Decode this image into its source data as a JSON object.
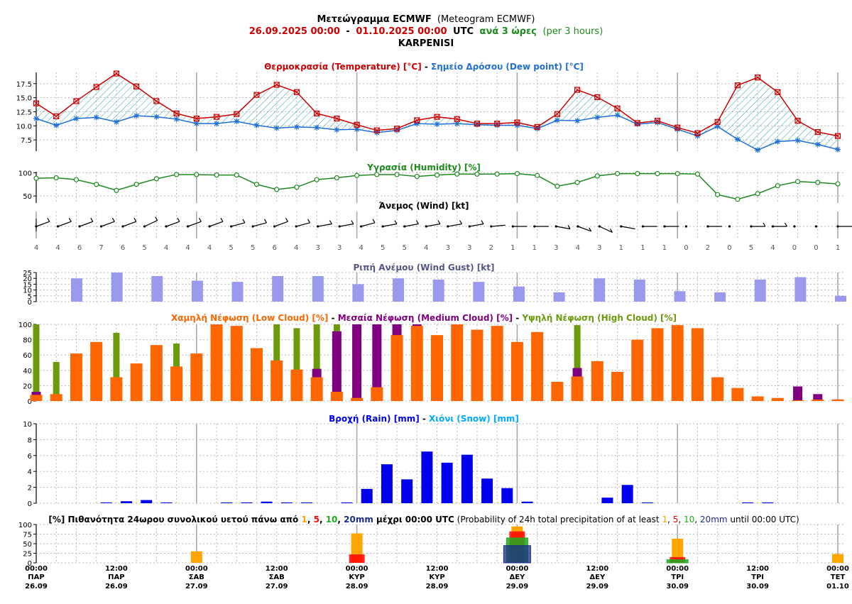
{
  "header": {
    "title_gr": "Μετεώγραμμα ECMWF",
    "title_en": "(Meteogram ECMWF)",
    "range_start": "26.09.2025 00:00",
    "dash": "-",
    "range_end": "01.10.2025 00:00",
    "utc": "UTC",
    "step_gr": "ανά 3 ώρες",
    "step_en": "(per 3 hours)",
    "location": "KARPENISI"
  },
  "colors": {
    "temp": "#cc0000",
    "dew": "#1f6fd6",
    "hum": "#1e8a1e",
    "gust": "#9999ee",
    "low": "#ff6600",
    "med": "#800080",
    "high": "#6b9b0b",
    "rain": "#0000ee",
    "snow": "#00aaff",
    "p1": "#ffa500",
    "p5": "#ff0000",
    "p10": "#22aa22",
    "p20": "#1a2e8a",
    "grid": "#bbbbbb",
    "day": "#aaaaaa"
  },
  "chart_data": [
    {
      "type": "line",
      "title_parts": [
        {
          "text": "Θερμοκρασία (Temperature) [°C]",
          "color": "temp"
        },
        {
          "text": " - ",
          "color": "black"
        },
        {
          "text": "Σημείο Δρόσου (Dew point) [°C]",
          "color": "dew"
        }
      ],
      "ylim": [
        5.5,
        19.5
      ],
      "yticks": [
        7.5,
        10.0,
        12.5,
        15.0,
        17.5
      ],
      "series": [
        {
          "name": "Θερμοκρασία (Temperature) [°C]",
          "values": [
            14.0,
            11.7,
            14.4,
            16.9,
            19.3,
            17.0,
            14.4,
            12.2,
            11.3,
            11.6,
            12.1,
            15.5,
            17.3,
            16.0,
            12.2,
            11.3,
            10.2,
            9.2,
            9.5,
            11.0,
            11.6,
            11.2,
            10.4,
            10.4,
            10.6,
            9.8,
            12.1,
            16.4,
            15.1,
            13.1,
            10.5,
            10.9,
            9.7,
            8.7,
            10.7,
            17.2,
            18.6,
            16.0,
            10.9,
            8.9,
            8.2
          ]
        },
        {
          "name": "Σημείο Δρόσου (Dew point) [°C]",
          "values": [
            11.3,
            10.1,
            11.3,
            11.5,
            10.7,
            11.8,
            11.6,
            11.2,
            10.4,
            10.4,
            10.8,
            10.1,
            9.6,
            9.8,
            9.7,
            9.3,
            9.4,
            8.8,
            9.2,
            10.4,
            10.3,
            10.4,
            10.2,
            10.1,
            10.1,
            9.5,
            11.0,
            10.9,
            11.5,
            11.9,
            10.3,
            10.6,
            9.4,
            8.2,
            9.9,
            7.6,
            5.7,
            7.2,
            7.4,
            6.7,
            5.8
          ]
        }
      ]
    },
    {
      "type": "line",
      "title": "Υγρασία (Humidity) [%]",
      "ylim": [
        35,
        102
      ],
      "yticks": [
        50,
        100
      ],
      "values": [
        88,
        89,
        85,
        75,
        62,
        75,
        87,
        96,
        96,
        95,
        95,
        75,
        64,
        69,
        85,
        89,
        94,
        96,
        96,
        92,
        95,
        97,
        97,
        97,
        98,
        94,
        71,
        79,
        93,
        98,
        98,
        98,
        98,
        97,
        53,
        43,
        55,
        72,
        81,
        79,
        76
      ]
    },
    {
      "type": "wind",
      "title": "Άνεμος (Wind) [kt]",
      "values": [
        4,
        4,
        6,
        7,
        6,
        5,
        4,
        4,
        4,
        5,
        5,
        6,
        4,
        3,
        3,
        4,
        5,
        5,
        4,
        3,
        3,
        2,
        1,
        1,
        3,
        4,
        3,
        1,
        1,
        1,
        0,
        2,
        0,
        5,
        4,
        0,
        0,
        1
      ],
      "directions": [
        20,
        20,
        20,
        20,
        20,
        25,
        20,
        20,
        20,
        15,
        15,
        20,
        15,
        10,
        10,
        15,
        10,
        10,
        10,
        10,
        10,
        5,
        0,
        0,
        -10,
        -20,
        -25,
        -10,
        0,
        0,
        0,
        0,
        0,
        0,
        0,
        0,
        0,
        0
      ]
    },
    {
      "type": "bar",
      "title": "Ριπή Ανέμου (Wind Gust) [kt]",
      "ylim": [
        0,
        25
      ],
      "yticks": [
        0,
        5,
        10,
        15,
        20,
        25
      ],
      "values": [
        20,
        25,
        22,
        18,
        17,
        22,
        22,
        15,
        20,
        19,
        17,
        13,
        8,
        20,
        19,
        9,
        8,
        19,
        21,
        5
      ]
    },
    {
      "type": "bar",
      "title_parts": [
        {
          "text": "Χαμηλή Νέφωση (Low Cloud) [%]",
          "color": "low"
        },
        {
          "text": " - ",
          "color": "black"
        },
        {
          "text": "Μεσαία Νέφωση (Medium Cloud) [%]",
          "color": "med"
        },
        {
          "text": " - ",
          "color": "black"
        },
        {
          "text": "Υψηλή Νέφωση (High Cloud) [%]",
          "color": "high"
        }
      ],
      "ylim": [
        0,
        100
      ],
      "yticks": [
        0,
        20,
        40,
        60,
        80,
        100
      ],
      "series": [
        {
          "name": "Υψηλή Νέφωση (High Cloud) [%]",
          "values": [
            100,
            51,
            0,
            0,
            89,
            0,
            0,
            75,
            0,
            0,
            0,
            0,
            100,
            95,
            100,
            100,
            0,
            0,
            0,
            0,
            0,
            0,
            0,
            0,
            0,
            0,
            0,
            99,
            43,
            0,
            0,
            0,
            0,
            0,
            0,
            0,
            0,
            0,
            0,
            0,
            0,
            0
          ]
        },
        {
          "name": "Μεσαία Νέφωση (Medium Cloud) [%]",
          "values": [
            12,
            0,
            0,
            0,
            0,
            0,
            0,
            0,
            0,
            0,
            0,
            0,
            0,
            0,
            42,
            91,
            100,
            100,
            100,
            100,
            0,
            0,
            0,
            0,
            0,
            0,
            0,
            43,
            0,
            0,
            0,
            0,
            0,
            0,
            0,
            0,
            0,
            0,
            19,
            9,
            2,
            0
          ]
        },
        {
          "name": "Χαμηλή Νέφωση (Low Cloud) [%]",
          "values": [
            8,
            9,
            62,
            77,
            31,
            49,
            73,
            45,
            62,
            100,
            98,
            69,
            53,
            41,
            31,
            12,
            4,
            18,
            86,
            98,
            86,
            100,
            93,
            98,
            77,
            90,
            25,
            32,
            52,
            38,
            80,
            95,
            99,
            95,
            31,
            17,
            6,
            4,
            1,
            2,
            2,
            0
          ]
        }
      ]
    },
    {
      "type": "bar",
      "title_parts": [
        {
          "text": "Βροχή (Rain) [mm]",
          "color": "rain"
        },
        {
          "text": " - ",
          "color": "black"
        },
        {
          "text": "Χιόνι (Snow) [mm]",
          "color": "snow"
        }
      ],
      "ylim": [
        0,
        10
      ],
      "yticks": [
        0,
        2,
        4,
        6,
        8,
        10
      ],
      "values": [
        0,
        0,
        0,
        0.1,
        0.25,
        0.4,
        0.1,
        0,
        0,
        0.1,
        0.1,
        0.2,
        0.1,
        0.1,
        0,
        0.1,
        1.8,
        4.9,
        3.0,
        6.5,
        5.1,
        6.1,
        3.1,
        1.9,
        0.2,
        0,
        0,
        0,
        0.7,
        2.3,
        0.1,
        0,
        0,
        0,
        0,
        0.1,
        0.1,
        0,
        0,
        0,
        0
      ]
    },
    {
      "type": "bar",
      "title_parts": [
        {
          "text": "[%] Πιθανότητα 24ωρου συνολικού υετού πάνω από ",
          "color": "black",
          "bold": true
        },
        {
          "text": "1",
          "color": "p1",
          "bold": true
        },
        {
          "text": ", ",
          "color": "black",
          "bold": true
        },
        {
          "text": "5",
          "color": "p5",
          "bold": true
        },
        {
          "text": ", ",
          "color": "black",
          "bold": true
        },
        {
          "text": "10",
          "color": "p10",
          "bold": true
        },
        {
          "text": ", ",
          "color": "black",
          "bold": true
        },
        {
          "text": "20mm",
          "color": "p20",
          "bold": true
        },
        {
          "text": " μέχρι 00:00 UTC",
          "color": "black",
          "bold": true
        },
        {
          "text": " (Probability of 24h total precipitation of at least ",
          "color": "black",
          "bold": false
        },
        {
          "text": "1",
          "color": "p1",
          "bold": false
        },
        {
          "text": ", ",
          "color": "black",
          "bold": false
        },
        {
          "text": "5",
          "color": "p5",
          "bold": false
        },
        {
          "text": ", ",
          "color": "black",
          "bold": false
        },
        {
          "text": "10",
          "color": "p10",
          "bold": false
        },
        {
          "text": ", ",
          "color": "black",
          "bold": false
        },
        {
          "text": "20mm",
          "color": "p20",
          "bold": false
        },
        {
          "text": " until 00:00 UTC)",
          "color": "black",
          "bold": false
        }
      ],
      "ylim": [
        0,
        100
      ],
      "yticks": [
        0,
        25,
        50,
        75,
        100
      ],
      "categories": [
        "00:00 27.09",
        "00:00 28.09",
        "00:00 29.09",
        "00:00 30.09",
        "00:00 01.10"
      ],
      "series": [
        {
          "name": "1",
          "values": [
            30,
            77,
            95,
            63,
            23
          ]
        },
        {
          "name": "5",
          "values": [
            0,
            22,
            82,
            15,
            0
          ]
        },
        {
          "name": "10",
          "values": [
            0,
            0,
            65,
            8,
            0
          ]
        },
        {
          "name": "20mm",
          "values": [
            0,
            0,
            45,
            0,
            0
          ]
        }
      ]
    }
  ],
  "xaxis": {
    "ticks": [
      {
        "time": "00:00",
        "day": "ΠΑΡ",
        "date": "26.09"
      },
      {
        "time": "12:00",
        "day": "ΠΑΡ",
        "date": "26.09"
      },
      {
        "time": "00:00",
        "day": "ΣΑΒ",
        "date": "27.09"
      },
      {
        "time": "12:00",
        "day": "ΣΑΒ",
        "date": "27.09"
      },
      {
        "time": "00:00",
        "day": "ΚΥΡ",
        "date": "28.09"
      },
      {
        "time": "12:00",
        "day": "ΚΥΡ",
        "date": "28.09"
      },
      {
        "time": "00:00",
        "day": "ΔΕΥ",
        "date": "29.09"
      },
      {
        "time": "12:00",
        "day": "ΔΕΥ",
        "date": "29.09"
      },
      {
        "time": "00:00",
        "day": "ΤΡΙ",
        "date": "30.09"
      },
      {
        "time": "12:00",
        "day": "ΤΡΙ",
        "date": "30.09"
      },
      {
        "time": "00:00",
        "day": "ΤΕΤ",
        "date": "01.10"
      }
    ]
  }
}
